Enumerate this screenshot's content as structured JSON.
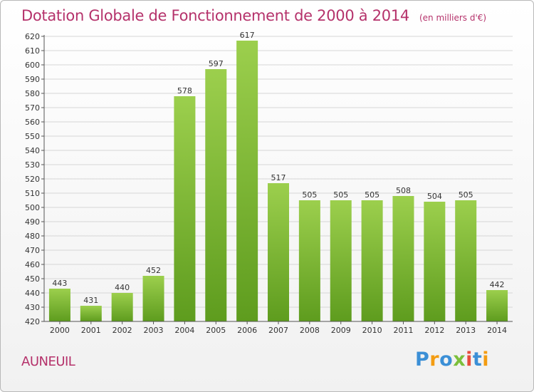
{
  "header": {
    "title": "Dotation Globale de Fonctionnement de 2000 à 2014",
    "subtitle": "(en milliers d'€)"
  },
  "footer": {
    "commune": "AUNEUIL",
    "brand": "Proxiti",
    "brand_letters": [
      {
        "ch": "P",
        "color": "#3b8fd6"
      },
      {
        "ch": "r",
        "color": "#f39c12"
      },
      {
        "ch": "o",
        "color": "#3b8fd6"
      },
      {
        "ch": "x",
        "color": "#7cbf3b"
      },
      {
        "ch": "i",
        "color": "#e74c3c"
      },
      {
        "ch": "t",
        "color": "#3b8fd6"
      },
      {
        "ch": "i",
        "color": "#f39c12"
      }
    ]
  },
  "colors": {
    "title": "#b5326b",
    "bar_top": "#9ccf4d",
    "bar_bottom": "#5e9c1e",
    "grid": "#d6d6d6",
    "axis": "#555555"
  },
  "chart_data": {
    "type": "bar",
    "title": "Dotation Globale de Fonctionnement de 2000 à 2014",
    "subtitle": "(en milliers d'€)",
    "xlabel": "",
    "ylabel": "",
    "categories": [
      "2000",
      "2001",
      "2002",
      "2003",
      "2004",
      "2005",
      "2006",
      "2007",
      "2008",
      "2009",
      "2010",
      "2011",
      "2012",
      "2013",
      "2014"
    ],
    "values": [
      443,
      431,
      440,
      452,
      578,
      597,
      617,
      517,
      505,
      505,
      505,
      508,
      504,
      505,
      442
    ],
    "ylim": [
      420,
      620
    ],
    "ytick_step": 10,
    "grid": true,
    "legend": "none"
  }
}
